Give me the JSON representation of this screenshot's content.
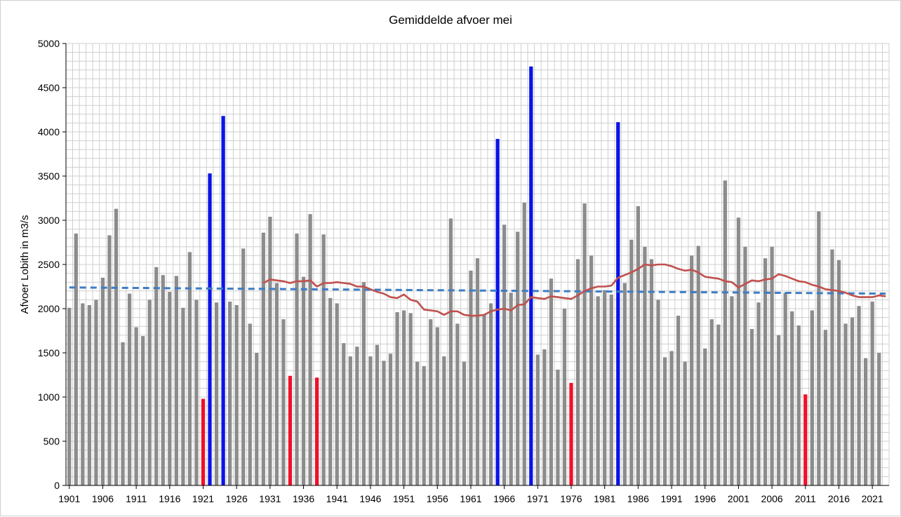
{
  "chart_data": {
    "type": "bar",
    "title": "Gemiddelde afvoer mei",
    "xlabel": "",
    "ylabel": "Afvoer Lobith in m3/s",
    "ylim": [
      0,
      5000
    ],
    "yticks": [
      0,
      500,
      1000,
      1500,
      2000,
      2500,
      3000,
      3500,
      4000,
      4500,
      5000
    ],
    "xtick_labels": [
      "1901",
      "1906",
      "1911",
      "1916",
      "1921",
      "1926",
      "1931",
      "1936",
      "1941",
      "1946",
      "1951",
      "1956",
      "1961",
      "1966",
      "1971",
      "1976",
      "1981",
      "1986",
      "1991",
      "1996",
      "2001",
      "2006",
      "2011",
      "2016",
      "2021"
    ],
    "grid": true,
    "legend": "none",
    "colors": {
      "normal": "#8c8c8c",
      "high": "#0a14e6",
      "low": "#f0102a",
      "moving_average": "#c0504d",
      "trend": "#3c7dc4",
      "grid": "#cfcfcf"
    },
    "years": [
      1901,
      1902,
      1903,
      1904,
      1905,
      1906,
      1907,
      1908,
      1909,
      1910,
      1911,
      1912,
      1913,
      1914,
      1915,
      1916,
      1917,
      1918,
      1919,
      1920,
      1921,
      1922,
      1923,
      1924,
      1925,
      1926,
      1927,
      1928,
      1929,
      1930,
      1931,
      1932,
      1933,
      1934,
      1935,
      1936,
      1937,
      1938,
      1939,
      1940,
      1941,
      1942,
      1943,
      1944,
      1945,
      1946,
      1947,
      1948,
      1949,
      1950,
      1951,
      1952,
      1953,
      1954,
      1955,
      1956,
      1957,
      1958,
      1959,
      1960,
      1961,
      1962,
      1963,
      1964,
      1965,
      1966,
      1967,
      1968,
      1969,
      1970,
      1971,
      1972,
      1973,
      1974,
      1975,
      1976,
      1977,
      1978,
      1979,
      1980,
      1981,
      1982,
      1983,
      1984,
      1985,
      1986,
      1987,
      1988,
      1989,
      1990,
      1991,
      1992,
      1993,
      1994,
      1995,
      1996,
      1997,
      1998,
      1999,
      2000,
      2001,
      2002,
      2003,
      2004,
      2005,
      2006,
      2007,
      2008,
      2009,
      2010,
      2011,
      2012,
      2013,
      2014,
      2015,
      2016,
      2017,
      2018,
      2019,
      2020,
      2021,
      2022,
      2023
    ],
    "values": [
      2010,
      2850,
      2060,
      2040,
      2100,
      2350,
      2830,
      3130,
      1620,
      2170,
      1790,
      1690,
      2100,
      2470,
      2380,
      2190,
      2370,
      2010,
      2640,
      2100,
      980,
      3530,
      2070,
      4180,
      2080,
      2040,
      2680,
      1830,
      1500,
      2860,
      3040,
      2290,
      1880,
      1240,
      2850,
      2360,
      3070,
      1220,
      2840,
      2120,
      2060,
      1610,
      1460,
      1570,
      2300,
      1460,
      1590,
      1410,
      1490,
      1960,
      1980,
      1950,
      1400,
      1350,
      1880,
      1790,
      1460,
      3020,
      1830,
      1400,
      2430,
      2570,
      1930,
      2060,
      3920,
      2950,
      2180,
      2870,
      3200,
      4740,
      1480,
      1540,
      2340,
      1310,
      2000,
      1160,
      2560,
      3190,
      2600,
      2140,
      2210,
      2160,
      4110,
      2290,
      2780,
      3160,
      2700,
      2560,
      2100,
      1450,
      1520,
      1920,
      1400,
      2600,
      2710,
      1550,
      1880,
      1820,
      3450,
      2140,
      3030,
      2700,
      1770,
      2070,
      2570,
      2700,
      1700,
      2180,
      1970,
      1810,
      1030,
      1980,
      3100,
      1760,
      2670,
      2550,
      1830,
      1900,
      2030,
      1440,
      2080,
      1500,
      null
    ],
    "categories": [
      "normal",
      "normal",
      "normal",
      "normal",
      "normal",
      "normal",
      "normal",
      "normal",
      "normal",
      "normal",
      "normal",
      "normal",
      "normal",
      "normal",
      "normal",
      "normal",
      "normal",
      "normal",
      "normal",
      "normal",
      "low",
      "high",
      "normal",
      "high",
      "normal",
      "normal",
      "normal",
      "normal",
      "normal",
      "normal",
      "normal",
      "normal",
      "normal",
      "low",
      "normal",
      "normal",
      "normal",
      "low",
      "normal",
      "normal",
      "normal",
      "normal",
      "normal",
      "normal",
      "normal",
      "normal",
      "normal",
      "normal",
      "normal",
      "normal",
      "normal",
      "normal",
      "normal",
      "normal",
      "normal",
      "normal",
      "normal",
      "normal",
      "normal",
      "normal",
      "normal",
      "normal",
      "normal",
      "normal",
      "high",
      "normal",
      "normal",
      "normal",
      "normal",
      "high",
      "normal",
      "normal",
      "normal",
      "normal",
      "normal",
      "low",
      "normal",
      "normal",
      "normal",
      "normal",
      "normal",
      "normal",
      "high",
      "normal",
      "normal",
      "normal",
      "normal",
      "normal",
      "normal",
      "normal",
      "normal",
      "normal",
      "normal",
      "normal",
      "normal",
      "normal",
      "normal",
      "normal",
      "normal",
      "normal",
      "normal",
      "normal",
      "normal",
      "normal",
      "normal",
      "normal",
      "normal",
      "normal",
      "normal",
      "normal",
      "low",
      "normal",
      "normal",
      "normal",
      "normal",
      "normal",
      "normal",
      "normal",
      "normal",
      "normal",
      "normal",
      "normal",
      "normal"
    ],
    "moving_average": {
      "points": [
        [
          1930,
          2290
        ],
        [
          1931,
          2330
        ],
        [
          1932,
          2320
        ],
        [
          1933,
          2310
        ],
        [
          1934,
          2290
        ],
        [
          1935,
          2310
        ],
        [
          1936,
          2310
        ],
        [
          1937,
          2320
        ],
        [
          1938,
          2250
        ],
        [
          1939,
          2290
        ],
        [
          1940,
          2290
        ],
        [
          1941,
          2300
        ],
        [
          1942,
          2290
        ],
        [
          1943,
          2280
        ],
        [
          1944,
          2250
        ],
        [
          1945,
          2250
        ],
        [
          1946,
          2220
        ],
        [
          1947,
          2190
        ],
        [
          1948,
          2170
        ],
        [
          1949,
          2130
        ],
        [
          1950,
          2120
        ],
        [
          1951,
          2160
        ],
        [
          1952,
          2100
        ],
        [
          1953,
          2080
        ],
        [
          1954,
          1990
        ],
        [
          1955,
          1980
        ],
        [
          1956,
          1970
        ],
        [
          1957,
          1930
        ],
        [
          1958,
          1970
        ],
        [
          1959,
          1970
        ],
        [
          1960,
          1930
        ],
        [
          1961,
          1920
        ],
        [
          1962,
          1920
        ],
        [
          1963,
          1930
        ],
        [
          1964,
          1970
        ],
        [
          1965,
          1990
        ],
        [
          1966,
          2000
        ],
        [
          1967,
          1980
        ],
        [
          1968,
          2040
        ],
        [
          1969,
          2050
        ],
        [
          1970,
          2130
        ],
        [
          1971,
          2120
        ],
        [
          1972,
          2110
        ],
        [
          1973,
          2140
        ],
        [
          1974,
          2130
        ],
        [
          1975,
          2120
        ],
        [
          1976,
          2110
        ],
        [
          1977,
          2150
        ],
        [
          1978,
          2200
        ],
        [
          1979,
          2230
        ],
        [
          1980,
          2250
        ],
        [
          1981,
          2250
        ],
        [
          1982,
          2260
        ],
        [
          1983,
          2350
        ],
        [
          1984,
          2380
        ],
        [
          1985,
          2410
        ],
        [
          1986,
          2450
        ],
        [
          1987,
          2500
        ],
        [
          1988,
          2490
        ],
        [
          1989,
          2500
        ],
        [
          1990,
          2500
        ],
        [
          1991,
          2480
        ],
        [
          1992,
          2450
        ],
        [
          1993,
          2430
        ],
        [
          1994,
          2440
        ],
        [
          1995,
          2410
        ],
        [
          1996,
          2360
        ],
        [
          1997,
          2350
        ],
        [
          1998,
          2340
        ],
        [
          1999,
          2310
        ],
        [
          2000,
          2300
        ],
        [
          2001,
          2240
        ],
        [
          2002,
          2280
        ],
        [
          2003,
          2320
        ],
        [
          2004,
          2310
        ],
        [
          2005,
          2330
        ],
        [
          2006,
          2340
        ],
        [
          2007,
          2390
        ],
        [
          2008,
          2370
        ],
        [
          2009,
          2340
        ],
        [
          2010,
          2310
        ],
        [
          2011,
          2300
        ],
        [
          2012,
          2270
        ],
        [
          2013,
          2250
        ],
        [
          2014,
          2220
        ],
        [
          2015,
          2210
        ],
        [
          2016,
          2200
        ],
        [
          2017,
          2180
        ],
        [
          2018,
          2150
        ],
        [
          2019,
          2130
        ],
        [
          2020,
          2130
        ],
        [
          2021,
          2130
        ],
        [
          2022,
          2150
        ],
        [
          2023,
          2140
        ]
      ]
    },
    "trendline": {
      "points": [
        [
          1901,
          2240
        ],
        [
          2023,
          2170
        ]
      ],
      "style": "dashed"
    }
  }
}
